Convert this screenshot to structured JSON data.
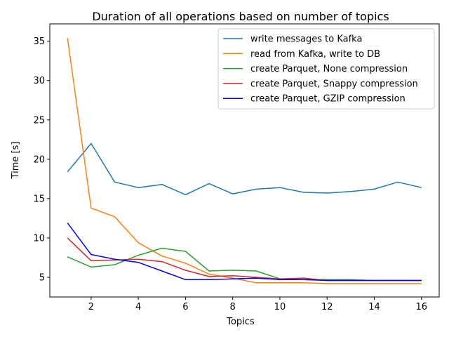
{
  "chart_data": {
    "type": "line",
    "title": "Duration of all operations based on number of topics",
    "xlabel": "Topics",
    "ylabel": "Time [s]",
    "xlim": [
      0.25,
      16.75
    ],
    "ylim": [
      2.5,
      37.2
    ],
    "xticks": [
      2,
      4,
      6,
      8,
      10,
      12,
      14,
      16
    ],
    "yticks": [
      5,
      10,
      15,
      20,
      25,
      30,
      35
    ],
    "grid": false,
    "legend_position": "upper right",
    "x": [
      1,
      2,
      3,
      4,
      5,
      6,
      7,
      8,
      9,
      10,
      11,
      12,
      13,
      14,
      15,
      16
    ],
    "series": [
      {
        "name": "write messages to Kafka",
        "color": "#1f77b4",
        "values": [
          18.4,
          22.0,
          17.1,
          16.4,
          16.8,
          15.5,
          16.9,
          15.6,
          16.2,
          16.4,
          15.8,
          15.7,
          15.9,
          16.2,
          17.1,
          16.4
        ]
      },
      {
        "name": "read from Kafka, write to DB",
        "color": "#ff7f0e",
        "values": [
          35.4,
          13.8,
          12.7,
          9.4,
          7.7,
          6.8,
          5.4,
          4.9,
          4.3,
          4.3,
          4.3,
          4.2,
          4.2,
          4.2,
          4.2,
          4.2
        ]
      },
      {
        "name": "create Parquet, None compression",
        "color": "#2ca02c",
        "values": [
          7.6,
          6.3,
          6.6,
          7.8,
          8.7,
          8.3,
          5.8,
          5.9,
          5.8,
          4.8,
          4.7,
          4.7,
          4.7,
          4.6,
          4.6,
          4.6
        ]
      },
      {
        "name": "create Parquet, Snappy compression",
        "color": "#d62728",
        "values": [
          10.0,
          7.1,
          7.2,
          7.3,
          7.0,
          5.9,
          5.1,
          5.2,
          5.0,
          4.8,
          4.9,
          4.6,
          4.6,
          4.6,
          4.6,
          4.6
        ]
      },
      {
        "name": "create Parquet, GZIP compression",
        "color": "#0000ff",
        "values": [
          11.9,
          7.9,
          7.3,
          6.9,
          5.8,
          4.7,
          4.7,
          4.8,
          4.9,
          4.7,
          4.7,
          4.6,
          4.6,
          4.6,
          4.6,
          4.6
        ]
      }
    ]
  }
}
